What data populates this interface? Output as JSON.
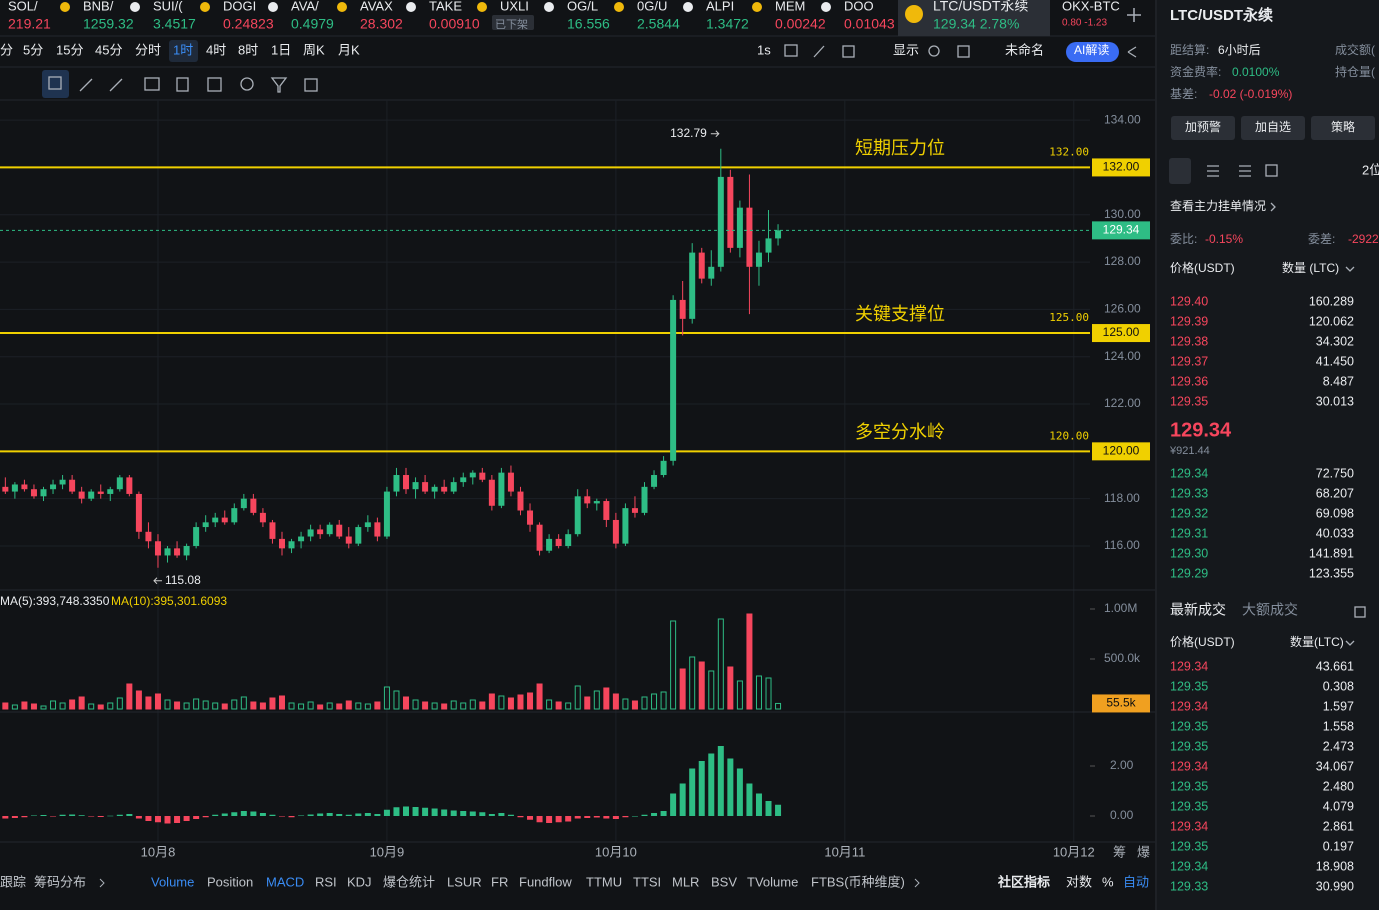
{
  "tickers": [
    {
      "name": "SOL/",
      "price": "219.21",
      "color": "#f6465d"
    },
    {
      "name": "BNB/",
      "price": "1259.32",
      "color": "#2ebd85"
    },
    {
      "name": "SUI/(",
      "price": "3.4517",
      "color": "#2ebd85"
    },
    {
      "name": "DOGI",
      "price": "0.24823",
      "color": "#f6465d"
    },
    {
      "name": "AVA/",
      "price": "0.4979",
      "color": "#2ebd85"
    },
    {
      "name": "AVAX",
      "price": "28.302",
      "color": "#f6465d"
    },
    {
      "name": "TAKE",
      "price": "0.00910",
      "color": "#f6465d"
    },
    {
      "name": "UXLI",
      "price": "已下架",
      "color": "#848e9c"
    },
    {
      "name": "OG/L",
      "price": "16.556",
      "color": "#2ebd85"
    },
    {
      "name": "0G/U",
      "price": "2.5844",
      "color": "#2ebd85"
    },
    {
      "name": "ALPI",
      "price": "1.3472",
      "color": "#2ebd85"
    },
    {
      "name": "MEM",
      "price": "0.00242",
      "color": "#f6465d"
    },
    {
      "name": "DOO",
      "price": "0.01043",
      "color": "#f6465d"
    },
    {
      "name": "LTC/USDT永续",
      "price": "129.34  2.78%",
      "color": "#2ebd85"
    },
    {
      "name": "OKX-BTC",
      "price": "0.80  -1.23",
      "color": "#f6465d"
    }
  ],
  "timeframes": [
    "分",
    "5分",
    "15分",
    "45分",
    "分时",
    "1时",
    "4时",
    "8时",
    "1日",
    "周K",
    "月K"
  ],
  "active_timeframe": 5,
  "toolbar_right": [
    "1s",
    "显示",
    "未命名",
    "AI解读"
  ],
  "chart_data": [
    {
      "type": "candlestick",
      "xlim": [
        -0.56,
        113.7
      ],
      "ylim": [
        114.14,
        134.85
      ],
      "xticks": [
        {
          "value": 16,
          "label": "10月8"
        },
        {
          "value": 40,
          "label": "10月9"
        },
        {
          "value": 64,
          "label": "10月10"
        },
        {
          "value": 88,
          "label": "10月11"
        },
        {
          "value": 112,
          "label": "10月12"
        }
      ],
      "yticks": [
        {
          "value": 116,
          "label": "116.00"
        },
        {
          "value": 118,
          "label": "118.00"
        },
        {
          "value": 120,
          "label": "120.00"
        },
        {
          "value": 122,
          "label": "122.00"
        },
        {
          "value": 124,
          "label": "124.00"
        },
        {
          "value": 126,
          "label": "126.00"
        },
        {
          "value": 128,
          "label": "128.00"
        },
        {
          "value": 130,
          "label": "130.00"
        },
        {
          "value": 132,
          "label": "132.00"
        },
        {
          "value": 134,
          "label": "134.00"
        }
      ],
      "levels": [
        {
          "value": 132,
          "label": "132.00",
          "name": "短期压力位"
        },
        {
          "value": 125,
          "label": "125.00",
          "name": "关键支撑位"
        },
        {
          "value": 120,
          "label": "120.00",
          "name": "多空分水岭"
        }
      ],
      "level_color": "#f0d000",
      "up_color": "#2ebd85",
      "down_color": "#f6465d",
      "ohlc": [
        [
          118.5,
          118.9,
          118.2,
          118.3
        ],
        [
          118.3,
          118.7,
          118.0,
          118.6
        ],
        [
          118.6,
          118.8,
          118.3,
          118.4
        ],
        [
          118.4,
          118.6,
          118.0,
          118.1
        ],
        [
          118.1,
          118.5,
          117.9,
          118.4
        ],
        [
          118.4,
          118.8,
          118.2,
          118.6
        ],
        [
          118.6,
          119.0,
          118.4,
          118.8
        ],
        [
          118.8,
          119.0,
          118.2,
          118.3
        ],
        [
          118.3,
          118.5,
          117.8,
          118.0
        ],
        [
          118.0,
          118.4,
          117.9,
          118.3
        ],
        [
          118.3,
          118.6,
          118.0,
          118.2
        ],
        [
          118.2,
          118.5,
          117.9,
          118.4
        ],
        [
          118.4,
          119.0,
          118.3,
          118.9
        ],
        [
          118.9,
          119.0,
          118.1,
          118.2
        ],
        [
          118.2,
          118.3,
          116.3,
          116.6
        ],
        [
          116.6,
          117.0,
          115.9,
          116.2
        ],
        [
          116.2,
          116.5,
          115.08,
          115.6
        ],
        [
          115.6,
          116.0,
          115.3,
          115.9
        ],
        [
          115.9,
          116.2,
          115.5,
          115.6
        ],
        [
          115.6,
          116.1,
          115.4,
          116.0
        ],
        [
          116.0,
          117.0,
          115.9,
          116.8
        ],
        [
          116.8,
          117.3,
          116.6,
          117.0
        ],
        [
          117.0,
          117.4,
          116.8,
          117.2
        ],
        [
          117.2,
          117.5,
          116.9,
          117.0
        ],
        [
          117.0,
          117.8,
          116.9,
          117.6
        ],
        [
          117.6,
          118.2,
          117.5,
          118.0
        ],
        [
          118.0,
          118.2,
          117.3,
          117.4
        ],
        [
          117.4,
          117.6,
          116.8,
          117.0
        ],
        [
          117.0,
          117.1,
          116.1,
          116.3
        ],
        [
          116.3,
          116.6,
          115.6,
          115.9
        ],
        [
          115.9,
          116.3,
          115.7,
          116.2
        ],
        [
          116.2,
          116.6,
          115.9,
          116.4
        ],
        [
          116.4,
          116.9,
          116.2,
          116.7
        ],
        [
          116.7,
          116.9,
          116.3,
          116.5
        ],
        [
          116.5,
          117.0,
          116.4,
          116.9
        ],
        [
          116.9,
          117.1,
          116.3,
          116.4
        ],
        [
          116.4,
          116.8,
          115.9,
          116.1
        ],
        [
          116.1,
          116.9,
          116.0,
          116.8
        ],
        [
          116.8,
          117.3,
          116.6,
          117.0
        ],
        [
          117.0,
          117.2,
          116.2,
          116.4
        ],
        [
          116.4,
          118.5,
          116.3,
          118.3
        ],
        [
          118.3,
          119.3,
          118.1,
          119.0
        ],
        [
          119.0,
          119.3,
          118.2,
          118.4
        ],
        [
          118.4,
          118.9,
          118.0,
          118.7
        ],
        [
          118.7,
          119.0,
          118.2,
          118.3
        ],
        [
          118.3,
          118.6,
          118.0,
          118.5
        ],
        [
          118.5,
          118.8,
          118.2,
          118.3
        ],
        [
          118.3,
          118.9,
          118.2,
          118.7
        ],
        [
          118.7,
          119.1,
          118.5,
          118.9
        ],
        [
          118.9,
          119.2,
          118.6,
          119.1
        ],
        [
          119.1,
          119.3,
          118.7,
          118.8
        ],
        [
          118.8,
          119.0,
          117.5,
          117.7
        ],
        [
          117.7,
          119.3,
          117.6,
          119.1
        ],
        [
          119.1,
          119.4,
          118.1,
          118.3
        ],
        [
          118.3,
          118.5,
          117.3,
          117.5
        ],
        [
          117.5,
          117.8,
          116.6,
          116.9
        ],
        [
          116.9,
          117.0,
          115.6,
          115.8
        ],
        [
          115.8,
          116.5,
          115.7,
          116.3
        ],
        [
          116.3,
          116.5,
          115.9,
          116.0
        ],
        [
          116.0,
          116.7,
          115.9,
          116.5
        ],
        [
          116.5,
          118.4,
          116.4,
          118.1
        ],
        [
          118.1,
          118.4,
          117.6,
          117.8
        ],
        [
          117.8,
          118.0,
          117.5,
          117.9
        ],
        [
          117.9,
          118.0,
          116.8,
          117.1
        ],
        [
          117.1,
          117.4,
          115.9,
          116.1
        ],
        [
          116.1,
          117.8,
          116.0,
          117.6
        ],
        [
          117.6,
          118.1,
          117.2,
          117.4
        ],
        [
          117.4,
          118.7,
          117.3,
          118.5
        ],
        [
          118.5,
          119.2,
          118.4,
          119.0
        ],
        [
          119.0,
          119.8,
          118.9,
          119.6
        ],
        [
          119.6,
          126.6,
          119.4,
          126.4
        ],
        [
          126.4,
          127.2,
          124.9,
          125.6
        ],
        [
          125.6,
          128.8,
          125.4,
          128.4
        ],
        [
          128.4,
          128.6,
          127.1,
          127.3
        ],
        [
          127.3,
          128.5,
          127.0,
          127.8
        ],
        [
          127.8,
          132.79,
          127.6,
          131.6
        ],
        [
          131.6,
          131.9,
          128.4,
          128.6
        ],
        [
          128.6,
          130.6,
          128.2,
          130.3
        ],
        [
          130.3,
          131.7,
          125.8,
          127.8
        ],
        [
          127.8,
          128.9,
          127.0,
          128.4
        ],
        [
          128.4,
          130.2,
          128.0,
          129.0
        ],
        [
          129.0,
          129.6,
          128.7,
          129.34
        ]
      ]
    },
    {
      "type": "bar",
      "ylim": [
        0,
        1170000
      ],
      "yticks": [
        {
          "value": 1000000,
          "label": "1.00M"
        },
        {
          "value": 500000,
          "label": "500.0k"
        }
      ],
      "current": {
        "value": 55500,
        "label": "55.5k"
      },
      "current_color": "#f0a020",
      "ma_labels": [
        {
          "text": "MA(5):393,748.3350",
          "color": "#eaecef"
        },
        {
          "text": "MA(10):395,301.6093",
          "color": "#f0d000"
        }
      ],
      "values": [
        60000,
        40000,
        70000,
        50000,
        30000,
        80000,
        60000,
        90000,
        120000,
        50000,
        40000,
        60000,
        110000,
        250000,
        180000,
        120000,
        150000,
        90000,
        70000,
        60000,
        100000,
        80000,
        60000,
        50000,
        90000,
        120000,
        70000,
        60000,
        110000,
        130000,
        60000,
        50000,
        70000,
        40000,
        60000,
        50000,
        80000,
        60000,
        50000,
        70000,
        220000,
        180000,
        120000,
        90000,
        70000,
        60000,
        50000,
        80000,
        60000,
        90000,
        70000,
        150000,
        130000,
        110000,
        140000,
        160000,
        250000,
        90000,
        70000,
        60000,
        230000,
        120000,
        180000,
        210000,
        150000,
        100000,
        80000,
        120000,
        150000,
        170000,
        880000,
        400000,
        520000,
        470000,
        380000,
        900000,
        420000,
        280000,
        950000,
        330000,
        310000,
        55500
      ]
    },
    {
      "type": "bar",
      "ylim": [
        -1.04,
        4.16
      ],
      "yticks": [
        {
          "value": 2,
          "label": "2.00"
        },
        {
          "value": 0,
          "label": "0.00"
        }
      ],
      "values": [
        -0.1,
        -0.08,
        -0.05,
        0.02,
        0.04,
        -0.02,
        0.05,
        0.06,
        0.03,
        -0.02,
        -0.04,
        0.01,
        0.05,
        0.08,
        -0.1,
        -0.2,
        -0.25,
        -0.3,
        -0.28,
        -0.2,
        -0.12,
        -0.05,
        0.05,
        0.1,
        0.15,
        0.2,
        0.18,
        0.12,
        0.05,
        -0.02,
        -0.05,
        0.02,
        0.06,
        0.1,
        0.12,
        0.08,
        0.05,
        0.1,
        0.12,
        0.08,
        0.25,
        0.35,
        0.38,
        0.36,
        0.33,
        0.3,
        0.26,
        0.22,
        0.2,
        0.18,
        0.15,
        0.08,
        0.12,
        0.05,
        -0.05,
        -0.15,
        -0.25,
        -0.28,
        -0.25,
        -0.22,
        -0.1,
        -0.08,
        -0.06,
        -0.1,
        -0.12,
        -0.05,
        0.0,
        0.05,
        0.12,
        0.2,
        0.9,
        1.3,
        1.9,
        2.2,
        2.5,
        2.8,
        2.3,
        1.9,
        1.3,
        0.9,
        0.6,
        0.45
      ]
    }
  ],
  "axis_corner": [
    "筹",
    "爆"
  ],
  "indicator_tabs": [
    "跟踪",
    "筹码分布",
    "Volume",
    "Position",
    "MACD",
    "RSI",
    "KDJ",
    "爆仓统计",
    "LSUR",
    "FR",
    "Fundflow",
    "TTMU",
    "TTSI",
    "MLR",
    "BSV",
    "TVolume",
    "FTBS(币种维度)"
  ],
  "active_tabs": [
    2,
    4
  ],
  "indicator_right": [
    "社区指标",
    "对数",
    "%",
    "自动"
  ],
  "panel": {
    "title": "LTC/USDT永续",
    "info": [
      {
        "label": "距结算:",
        "value": "6小时后",
        "color": "#eaecef"
      },
      {
        "label": "资金费率:",
        "value": "0.0100%",
        "color": "#2ebd85"
      },
      {
        "label": "基差:",
        "value": "-0.02 (-0.019%)",
        "color": "#f6465d"
      }
    ],
    "info_right": [
      "成交额(",
      "持仓量("
    ],
    "buttons": [
      "加预警",
      "加自选",
      "策略"
    ],
    "precision": "2位",
    "depth_link": "查看主力挂单情况",
    "ratio": {
      "label": "委比:",
      "value": "-0.15%"
    },
    "diff": {
      "label": "委差:",
      "value": "-2922"
    },
    "book_header": [
      "价格(USDT)",
      "数量 (LTC)"
    ],
    "asks": [
      [
        "129.40",
        "160.289"
      ],
      [
        "129.39",
        "120.062"
      ],
      [
        "129.38",
        "34.302"
      ],
      [
        "129.37",
        "41.450"
      ],
      [
        "129.36",
        "8.487"
      ],
      [
        "129.35",
        "30.013"
      ]
    ],
    "last_price": "129.34",
    "last_cny": "¥921.44",
    "bids": [
      [
        "129.34",
        "72.750"
      ],
      [
        "129.33",
        "68.207"
      ],
      [
        "129.32",
        "69.098"
      ],
      [
        "129.31",
        "40.033"
      ],
      [
        "129.30",
        "141.891"
      ],
      [
        "129.29",
        "123.355"
      ]
    ],
    "trade_tabs": [
      "最新成交",
      "大额成交"
    ],
    "trade_header": [
      "价格(USDT)",
      "数量(LTC)"
    ],
    "trades": [
      {
        "price": "129.34",
        "qty": "43.661",
        "color": "#f6465d"
      },
      {
        "price": "129.35",
        "qty": "0.308",
        "color": "#2ebd85"
      },
      {
        "price": "129.34",
        "qty": "1.597",
        "color": "#f6465d"
      },
      {
        "price": "129.35",
        "qty": "1.558",
        "color": "#2ebd85"
      },
      {
        "price": "129.35",
        "qty": "2.473",
        "color": "#2ebd85"
      },
      {
        "price": "129.34",
        "qty": "34.067",
        "color": "#f6465d"
      },
      {
        "price": "129.35",
        "qty": "2.480",
        "color": "#2ebd85"
      },
      {
        "price": "129.35",
        "qty": "4.079",
        "color": "#2ebd85"
      },
      {
        "price": "129.34",
        "qty": "2.861",
        "color": "#f6465d"
      },
      {
        "price": "129.35",
        "qty": "0.197",
        "color": "#2ebd85"
      },
      {
        "price": "129.34",
        "qty": "18.908",
        "color": "#2ebd85"
      },
      {
        "price": "129.33",
        "qty": "30.990",
        "color": "#2ebd85"
      }
    ]
  }
}
